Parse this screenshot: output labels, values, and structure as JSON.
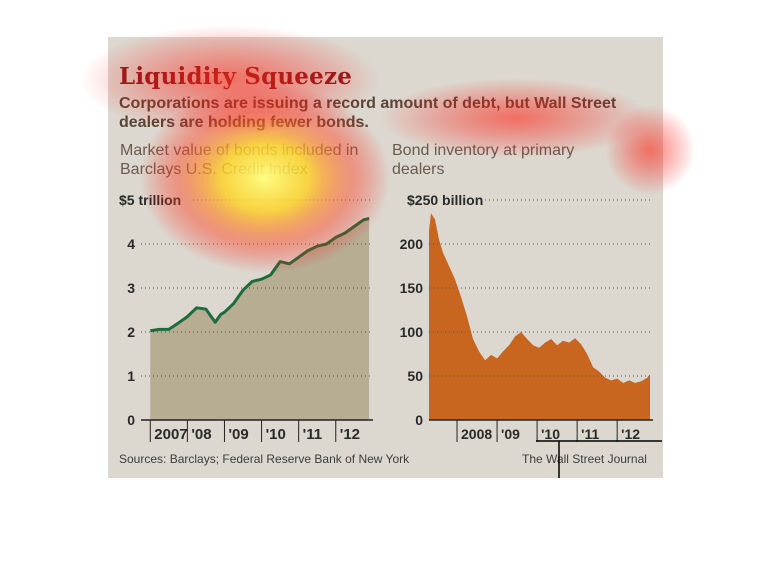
{
  "title": "Liquidity Squeeze",
  "subtitle": "Corporations are issuing a record amount of debt, but Wall Street dealers are holding fewer bonds.",
  "source": "Sources: Barclays; Federal Reserve Bank of New York",
  "credit": "The Wall Street Journal",
  "colors": {
    "left_line": "#1e6b3c",
    "left_fill": "#b3a88c",
    "right_fill": "#c8651f",
    "title": "#8c1b1b"
  },
  "chart_data": [
    {
      "type": "area",
      "title": "Market value of bonds included in Barclays U.S. Credit Index",
      "units_label": "$5 trillion",
      "ylim": [
        0,
        5
      ],
      "y_ticks": [
        "0",
        "1",
        "2",
        "3",
        "4"
      ],
      "x_ticks": [
        "2007",
        "'08",
        "'09",
        "'10",
        "'11",
        "'12"
      ],
      "grid": true,
      "x": [
        2007.0,
        2007.25,
        2007.5,
        2007.75,
        2008.0,
        2008.25,
        2008.5,
        2008.75,
        2008.9,
        2009.0,
        2009.25,
        2009.5,
        2009.75,
        2010.0,
        2010.25,
        2010.5,
        2010.75,
        2011.0,
        2011.25,
        2011.5,
        2011.75,
        2012.0,
        2012.25,
        2012.5,
        2012.75,
        2012.9
      ],
      "values": [
        2.03,
        2.06,
        2.06,
        2.2,
        2.35,
        2.55,
        2.52,
        2.22,
        2.4,
        2.45,
        2.65,
        2.95,
        3.15,
        3.2,
        3.3,
        3.6,
        3.55,
        3.7,
        3.85,
        3.95,
        4.0,
        4.15,
        4.25,
        4.4,
        4.55,
        4.58
      ]
    },
    {
      "type": "area",
      "title": "Bond inventory at primary dealers",
      "units_label": "$250 billion",
      "ylim": [
        0,
        250
      ],
      "y_ticks": [
        "0",
        "50",
        "100",
        "150",
        "200"
      ],
      "x_ticks": [
        "2008",
        "'09",
        "'10",
        "'11",
        "'12"
      ],
      "grid": true,
      "x": [
        2007.3,
        2007.35,
        2007.45,
        2007.55,
        2007.65,
        2007.8,
        2007.95,
        2008.1,
        2008.25,
        2008.4,
        2008.55,
        2008.7,
        2008.85,
        2009.0,
        2009.15,
        2009.3,
        2009.45,
        2009.6,
        2009.75,
        2009.9,
        2010.05,
        2010.2,
        2010.35,
        2010.5,
        2010.65,
        2010.8,
        2010.95,
        2011.1,
        2011.25,
        2011.4,
        2011.55,
        2011.7,
        2011.85,
        2012.0,
        2012.15,
        2012.3,
        2012.45,
        2012.6,
        2012.75,
        2012.82
      ],
      "values": [
        215,
        235,
        228,
        205,
        190,
        175,
        160,
        140,
        118,
        92,
        78,
        68,
        74,
        70,
        78,
        85,
        95,
        100,
        92,
        85,
        82,
        88,
        92,
        85,
        90,
        88,
        93,
        86,
        75,
        60,
        55,
        48,
        45,
        47,
        42,
        45,
        42,
        44,
        48,
        52
      ]
    }
  ]
}
